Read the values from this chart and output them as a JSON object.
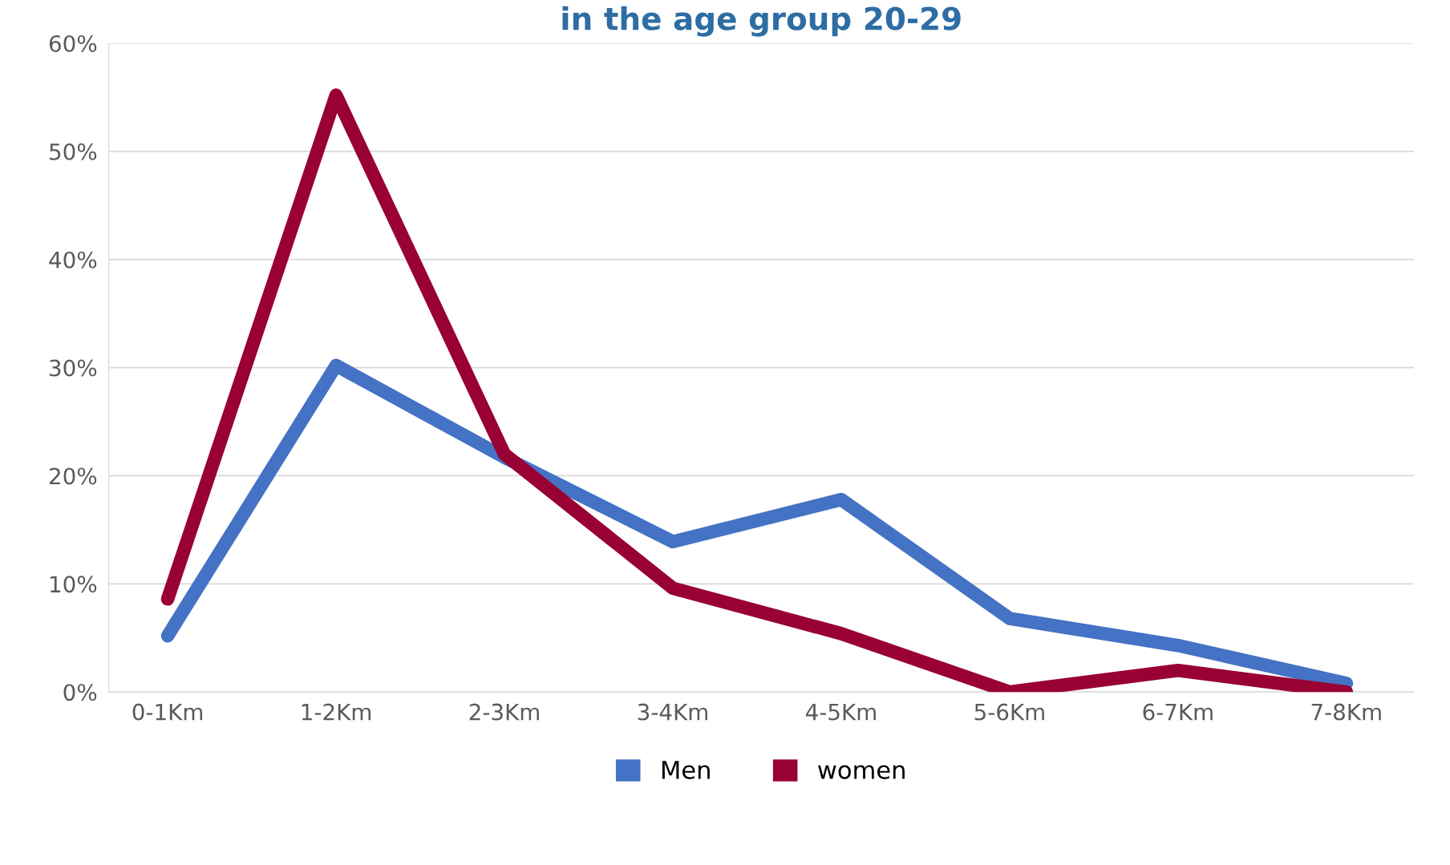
{
  "chart_data": {
    "type": "line",
    "title": "in the age group 20-29",
    "categories": [
      "0-1Km",
      "1-2Km",
      "2-3Km",
      "3-4Km",
      "4-5Km",
      "5-6Km",
      "6-7Km",
      "7-8Km"
    ],
    "series": [
      {
        "name": "Men",
        "color": "#4472c4",
        "values": [
          5.2,
          30.2,
          21.7,
          13.9,
          17.8,
          6.8,
          4.3,
          0.8
        ]
      },
      {
        "name": "women",
        "color": "#990033",
        "values": [
          8.6,
          55.2,
          22,
          9.6,
          5.4,
          0,
          2,
          0
        ]
      }
    ],
    "ylim": [
      0,
      60
    ],
    "yticks": [
      {
        "value": 0,
        "label": "0%"
      },
      {
        "value": 10,
        "label": "10%"
      },
      {
        "value": 20,
        "label": "20%"
      },
      {
        "value": 30,
        "label": "30%"
      },
      {
        "value": 40,
        "label": "40%"
      },
      {
        "value": 50,
        "label": "50%"
      },
      {
        "value": 60,
        "label": "60%"
      }
    ],
    "grid": "y",
    "legend": "bottom"
  }
}
